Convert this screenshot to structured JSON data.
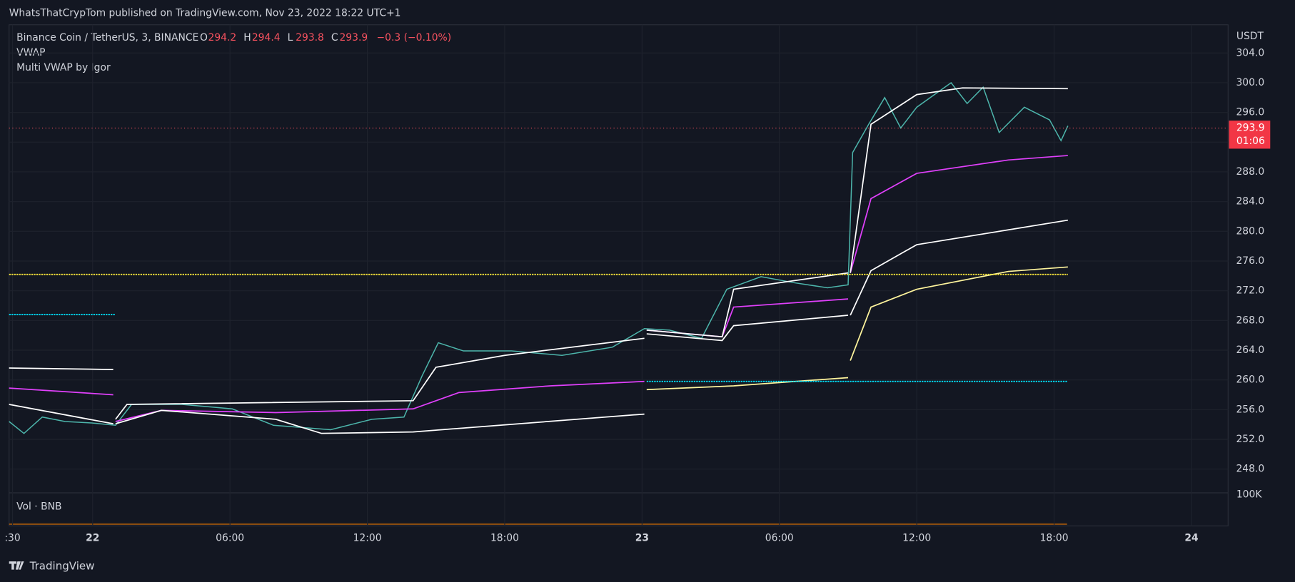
{
  "header": {
    "publisher": "WhatsThatCrypTom published on TradingView.com, Nov 23, 2022 18:22 UTC+1",
    "brand": "TradingView"
  },
  "chart_data": {
    "type": "line",
    "symbol": "Binance Coin / TetherUS, 3, BINANCE",
    "ohlc": [
      {
        "label": "O",
        "value": 294.2
      },
      {
        "label": "H",
        "value": 294.4
      },
      {
        "label": "L",
        "value": 293.8
      },
      {
        "label": "C",
        "value": 293.9
      }
    ],
    "change": "−0.3 (−0.10%)",
    "indicators": [
      "VWAP",
      "Multi VWAP by Igor"
    ],
    "currency": "USDT",
    "last_price": 293.9,
    "countdown": "01:06",
    "volume_label": "Vol · BNB",
    "volume_tick": "100K",
    "xlim": [
      -3.65,
      49.6
    ],
    "ylim": [
      244.8,
      307.8
    ],
    "xticks": [
      {
        "value": -3.5,
        "label": ":30"
      },
      {
        "value": 0,
        "label": "22"
      },
      {
        "value": 6,
        "label": "06:00"
      },
      {
        "value": 12,
        "label": "12:00"
      },
      {
        "value": 18,
        "label": "18:00"
      },
      {
        "value": 24,
        "label": "23"
      },
      {
        "value": 30,
        "label": "06:00"
      },
      {
        "value": 36,
        "label": "12:00"
      },
      {
        "value": 42,
        "label": "18:00"
      },
      {
        "value": 48,
        "label": "24"
      }
    ],
    "yticks": [
      {
        "value": 248,
        "label": "248.0"
      },
      {
        "value": 252,
        "label": "252.0"
      },
      {
        "value": 256,
        "label": "256.0"
      },
      {
        "value": 260,
        "label": "260.0"
      },
      {
        "value": 264,
        "label": "264.0"
      },
      {
        "value": 268,
        "label": "268.0"
      },
      {
        "value": 272,
        "label": "272.0"
      },
      {
        "value": 276,
        "label": "276.0"
      },
      {
        "value": 280,
        "label": "280.0"
      },
      {
        "value": 284,
        "label": "284.0"
      },
      {
        "value": 288,
        "label": "288.0"
      },
      {
        "value": 292,
        "label": "292.0"
      },
      {
        "value": 296,
        "label": "296.0"
      },
      {
        "value": 300,
        "label": "300.0"
      },
      {
        "value": 304,
        "label": "304.0"
      }
    ],
    "grid": true,
    "series": [
      {
        "color": "#4db6ac",
        "x": [
          -3.65,
          -3.0,
          -2.2,
          -1.2,
          0,
          1.0,
          1.7,
          3.9,
          6.1,
          7.9,
          10.4,
          12.2,
          13.6,
          14.4,
          15.1,
          16.2,
          18.3,
          20.5,
          22.7,
          24.1,
          25.2,
          26.6,
          27.7,
          29.2,
          30.6,
          32.1,
          33.0,
          33.2,
          33.9,
          34.6,
          35.3,
          36.0,
          37.5,
          38.2,
          38.9,
          39.6,
          40.7,
          41.8,
          42.3,
          42.6
        ],
        "values": [
          254.4,
          252.8,
          255,
          254.4,
          254.2,
          253.9,
          256.7,
          256.7,
          256.1,
          253.9,
          253.3,
          254.7,
          255,
          260.6,
          265,
          263.9,
          263.9,
          263.3,
          264.4,
          266.9,
          266.7,
          265.6,
          272.2,
          273.9,
          273.1,
          272.4,
          272.8,
          290.6,
          294.4,
          298,
          293.9,
          296.7,
          300,
          297.2,
          299.4,
          293.3,
          296.7,
          295,
          292.2,
          294.2
        ]
      },
      {
        "color": "#e040fb",
        "x": [
          -3.65,
          0.9,
          null,
          1.0,
          3,
          8,
          14,
          16,
          20,
          24.1,
          null,
          24.2,
          27.5,
          28,
          33.0,
          null,
          33.1,
          34,
          36,
          40,
          42.6
        ],
        "values": [
          258.9,
          258.0,
          null,
          254.4,
          255.9,
          255.6,
          256.1,
          258.3,
          259.2,
          259.8,
          null,
          266.7,
          265.8,
          269.8,
          270.9,
          null,
          274.4,
          284.4,
          287.8,
          289.6,
          290.2
        ]
      },
      {
        "color": "#ffffff",
        "x": [
          -3.65,
          0.9,
          null,
          1.0,
          1.5,
          14,
          15,
          18,
          24.1,
          null,
          24.2,
          27.5,
          28,
          33.0,
          null,
          33.1,
          34,
          36,
          38,
          42.6
        ],
        "values": [
          261.6,
          261.4,
          null,
          254.7,
          256.7,
          257.2,
          261.7,
          263.3,
          265.6,
          null,
          266.7,
          265.8,
          272.2,
          274.4,
          null,
          274.4,
          294.4,
          298.4,
          299.3,
          299.2
        ]
      },
      {
        "color": "#ffffff",
        "x": [
          -3.65,
          0.9,
          null,
          1.0,
          3,
          8,
          10,
          14,
          24.1,
          null,
          24.2,
          27.5,
          28,
          33.0,
          null,
          33.1,
          34,
          36,
          40,
          42.6
        ],
        "values": [
          256.7,
          254.1,
          null,
          254.1,
          255.9,
          254.7,
          252.8,
          253.0,
          255.4,
          null,
          266.2,
          265.3,
          267.3,
          268.7,
          null,
          268.7,
          274.7,
          278.2,
          280.2,
          281.5
        ]
      },
      {
        "color": "#fff59d",
        "x": [
          24.2,
          28,
          33.0,
          null,
          33.1,
          34,
          36,
          40,
          42.6
        ],
        "values": [
          258.7,
          259.2,
          260.3,
          null,
          262.6,
          269.8,
          272.2,
          274.6,
          275.2
        ]
      },
      {
        "color": "#ffeb3b",
        "x": [
          -3.65,
          42.6
        ],
        "values": [
          274.2,
          274.2
        ]
      },
      {
        "color": "#00e5ff",
        "x": [
          24.2,
          42.6
        ],
        "values": [
          259.8,
          259.8
        ]
      },
      {
        "color": "#00e5ff",
        "x": [
          -3.65,
          1.0
        ],
        "values": [
          268.8,
          268.8
        ]
      }
    ]
  }
}
